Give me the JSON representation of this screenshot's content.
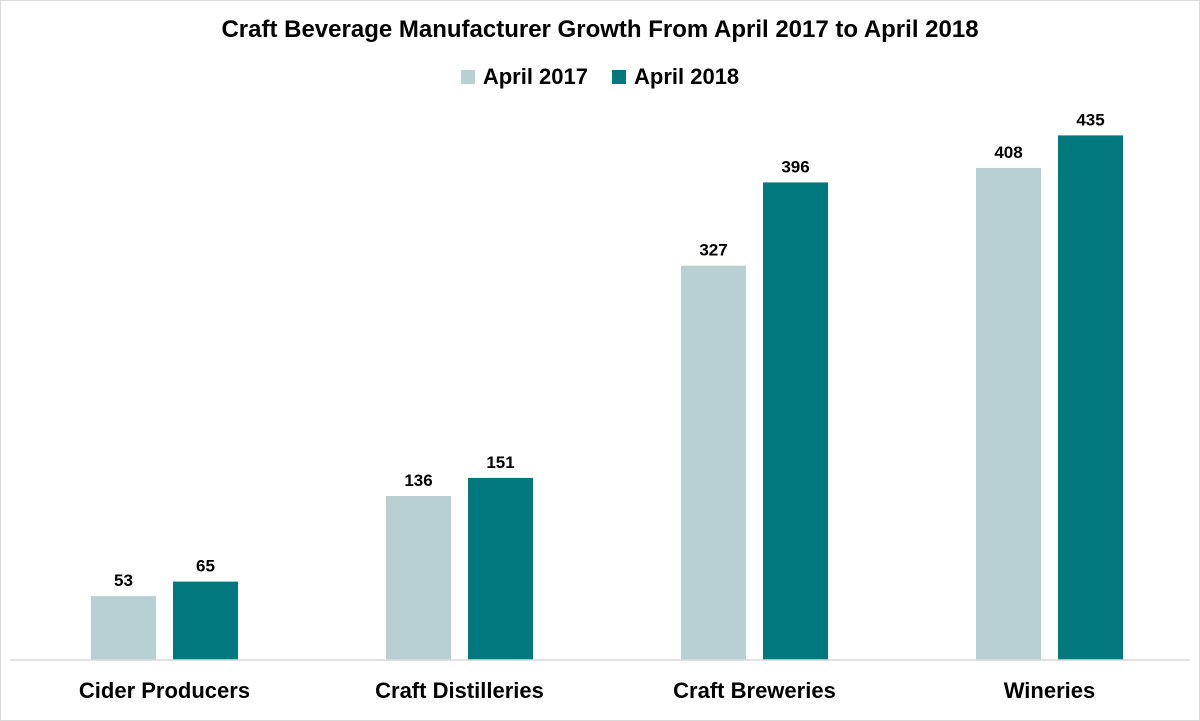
{
  "chart_data": {
    "type": "bar",
    "title": "Craft Beverage Manufacturer Growth From April 2017 to April 2018",
    "categories": [
      "Cider Producers",
      "Craft Distilleries",
      "Craft Breweries",
      "Wineries"
    ],
    "series": [
      {
        "name": "April 2017",
        "values": [
          53,
          136,
          327,
          408
        ],
        "color": "#b8d0d1"
      },
      {
        "name": "April 2018",
        "values": [
          65,
          151,
          396,
          435
        ],
        "color": "#00787e"
      }
    ],
    "xlabel": "",
    "ylabel": "",
    "ylim": [
      0,
      450
    ],
    "grid": false,
    "legend_position": "top",
    "data_labels": true
  }
}
